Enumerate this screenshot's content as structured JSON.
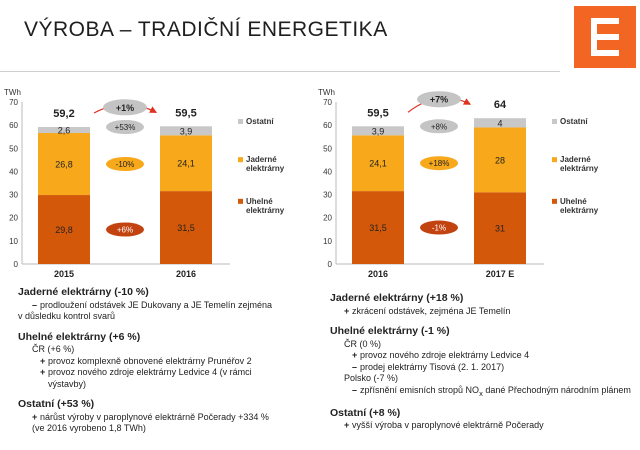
{
  "title": "VÝROBA – TRADIČNÍ ENERGETIKA",
  "colors": {
    "uhelne": "#d4580a",
    "jaderne": "#f7a81b",
    "ostatni": "#c8c8c8",
    "oval_gray": "#c4c4c4",
    "oval_orange": "#f7a81b",
    "oval_dark": "#c2430f",
    "arrow": "#e0301e",
    "logo": "#f26522"
  },
  "chart_data": [
    {
      "type": "bar",
      "stacked": true,
      "unit": "TWh",
      "categories": [
        "2015",
        "2016"
      ],
      "series": [
        {
          "name": "Uhelné elektrárny",
          "values": [
            29.8,
            31.5
          ],
          "labels": [
            "29,8",
            "31,5"
          ]
        },
        {
          "name": "Jaderné elektrárny",
          "values": [
            26.8,
            24.1
          ],
          "labels": [
            "26,8",
            "24,1"
          ]
        },
        {
          "name": "Ostatní",
          "values": [
            2.6,
            3.9
          ],
          "labels": [
            "2,6",
            "3,9"
          ]
        }
      ],
      "totals": [
        "59,2",
        "59,5"
      ],
      "ylim": [
        0,
        70
      ],
      "yticks": [
        "0",
        "10",
        "20",
        "30",
        "40",
        "50",
        "60",
        "70"
      ],
      "legend": [
        "Ostatní",
        "Jaderné elektrárny",
        "Uhelné elektrárny"
      ],
      "change_total": "+1%",
      "change_series": [
        "+6%",
        "-10%",
        "+53%"
      ]
    },
    {
      "type": "bar",
      "stacked": true,
      "unit": "TWh",
      "categories": [
        "2016",
        "2017 E"
      ],
      "series": [
        {
          "name": "Uhelné elektrárny",
          "values": [
            31.5,
            31
          ],
          "labels": [
            "31,5",
            "31"
          ]
        },
        {
          "name": "Jaderné elektrárny",
          "values": [
            24.1,
            28
          ],
          "labels": [
            "24,1",
            "28"
          ]
        },
        {
          "name": "Ostatní",
          "values": [
            3.9,
            4
          ],
          "labels": [
            "3,9",
            "4"
          ]
        }
      ],
      "totals": [
        "59,5",
        "64"
      ],
      "ylim": [
        0,
        70
      ],
      "yticks": [
        "0",
        "10",
        "20",
        "30",
        "40",
        "50",
        "60",
        "70"
      ],
      "legend": [
        "Ostatní",
        "Jaderné elektrárny",
        "Uhelné elektrárny"
      ],
      "change_total": "+7%",
      "change_series": [
        "-1%",
        "+18%",
        "+8%"
      ]
    }
  ],
  "left_notes": {
    "jaderne_head": "Jaderné elektrárny (-10 %)",
    "jaderne_1": "prodloužení odstávek JE Dukovany a JE Temelín zejména",
    "jaderne_1b": "v důsledku kontrol svarů",
    "uhelne_head": "Uhelné elektrárny (+6 %)",
    "uhelne_cr": "ČR (+6 %)",
    "uhelne_1": "provoz komplexně obnovené elektrárny Prunéřov 2",
    "uhelne_2": "provoz nového zdroje elektrárny Ledvice 4 (v rámci",
    "uhelne_2b": "výstavby)",
    "ostatni_head": "Ostatní (+53 %)",
    "ostatni_1": "nárůst výroby v paroplynové elektrárně Počerady +334 %",
    "ostatni_1b": "(ve 2016 vyrobeno 1,8 TWh)"
  },
  "right_notes": {
    "jaderne_head": "Jaderné elektrárny (+18 %)",
    "jaderne_1": "zkrácení odstávek, zejména JE Temelín",
    "uhelne_head": "Uhelné elektrárny (-1 %)",
    "uhelne_cr": "ČR (0 %)",
    "uhelne_1": "provoz nového zdroje elektrárny Ledvice 4",
    "uhelne_2": "prodej elektrárny Tisová (2. 1. 2017)",
    "uhelne_pl": "Polsko (-7 %)",
    "uhelne_3a": "zpřísnění emisních stropů NO",
    "uhelne_3sub": "x",
    "uhelne_3b": " dané Přechodným národním plánem",
    "ostatni_head": "Ostatní (+8 %)",
    "ostatni_1": "vyšší výroba v paroplynové elektrárně Počerady"
  }
}
